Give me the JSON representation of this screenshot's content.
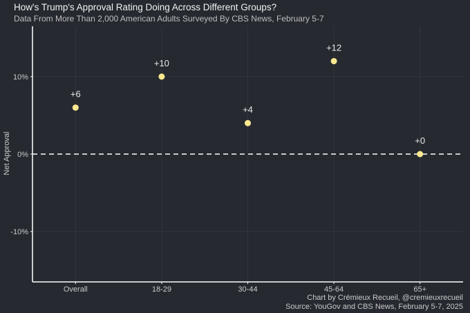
{
  "chart_data": {
    "type": "scatter",
    "title": "How's Trump's Approval Rating Doing Across Different Groups?",
    "subtitle": "Data From More Than 2,000 American Adults Surveyed By CBS News, February 5-7",
    "xlabel": "",
    "ylabel": "Net Approval",
    "categories": [
      "Overall",
      "18-29",
      "30-44",
      "45-64",
      "65+"
    ],
    "values": [
      6,
      10,
      4,
      12,
      0
    ],
    "data_labels": [
      "+6",
      "+10",
      "+4",
      "+12",
      "+0"
    ],
    "ylim": [
      -16.5,
      16.5
    ],
    "yticks": [
      -10,
      0,
      10
    ],
    "ytick_labels": [
      "-10%",
      "0%",
      "10%"
    ],
    "reference_line": 0,
    "grid": true,
    "colors": {
      "background": "#262a30",
      "point": "#fce98f",
      "grid": "#30353c",
      "axis": "#ffffff",
      "reference_line": "#ffffff"
    },
    "caption": [
      "Chart by Crémieux Recueil, @cremieuxrecueil",
      "Source: YouGov and CBS News, February 5-7, 2025"
    ]
  }
}
